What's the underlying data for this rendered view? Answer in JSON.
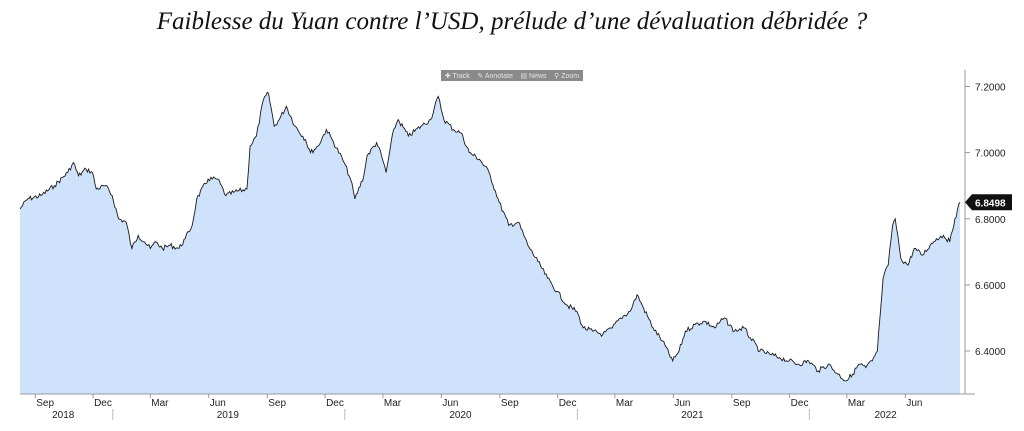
{
  "title": "Faiblesse du Yuan contre l’USD, prélude d’une dévaluation débridée ?",
  "toolbar": {
    "items": [
      {
        "label": "Track",
        "icon": "crosshair-icon"
      },
      {
        "label": "Annotate",
        "icon": "pencil-icon"
      },
      {
        "label": "News",
        "icon": "news-icon"
      },
      {
        "label": "Zoom",
        "icon": "magnifier-icon"
      }
    ]
  },
  "chart_data": {
    "type": "area",
    "title": "Faiblesse du Yuan contre l’USD, prélude d’une dévaluation débridée ?",
    "xlabel": "",
    "ylabel": "",
    "x_range": [
      "2018-08-08",
      "2022-08-26"
    ],
    "ylim": [
      6.27,
      7.25
    ],
    "y_ticks": [
      6.4,
      6.6,
      6.8,
      7.0,
      7.2
    ],
    "y_tick_labels": [
      "6.4000",
      "6.6000",
      "6.8000",
      "7.0000",
      "7.2000"
    ],
    "last_value": 6.8498,
    "last_value_label": "6.8498",
    "fill_color": "#cfe2fb",
    "line_color": "#1a1a1a",
    "grid": false,
    "x_month_ticks": [
      {
        "date": "2018-09-01",
        "label": "Sep"
      },
      {
        "date": "2018-12-01",
        "label": "Dec"
      },
      {
        "date": "2019-03-01",
        "label": "Mar"
      },
      {
        "date": "2019-06-01",
        "label": "Jun"
      },
      {
        "date": "2019-09-01",
        "label": "Sep"
      },
      {
        "date": "2019-12-01",
        "label": "Dec"
      },
      {
        "date": "2020-03-01",
        "label": "Mar"
      },
      {
        "date": "2020-06-01",
        "label": "Jun"
      },
      {
        "date": "2020-09-01",
        "label": "Sep"
      },
      {
        "date": "2020-12-01",
        "label": "Dec"
      },
      {
        "date": "2021-03-01",
        "label": "Mar"
      },
      {
        "date": "2021-06-01",
        "label": "Jun"
      },
      {
        "date": "2021-09-01",
        "label": "Sep"
      },
      {
        "date": "2021-12-01",
        "label": "Dec"
      },
      {
        "date": "2022-03-01",
        "label": "Mar"
      },
      {
        "date": "2022-06-01",
        "label": "Jun"
      }
    ],
    "x_year_labels": [
      {
        "date": "2018-10-15",
        "label": "2018"
      },
      {
        "date": "2019-07-01",
        "label": "2019"
      },
      {
        "date": "2020-07-01",
        "label": "2020"
      },
      {
        "date": "2021-07-01",
        "label": "2021"
      },
      {
        "date": "2022-05-01",
        "label": "2022"
      }
    ],
    "x_year_dividers": [
      "2019-01-01",
      "2020-01-01",
      "2021-01-01",
      "2022-01-01"
    ],
    "series": [
      {
        "values": [
          [
            "2018-08-08",
            6.83
          ],
          [
            "2018-08-20",
            6.86
          ],
          [
            "2018-09-10",
            6.87
          ],
          [
            "2018-10-01",
            6.9
          ],
          [
            "2018-10-22",
            6.94
          ],
          [
            "2018-10-31",
            6.97
          ],
          [
            "2018-11-08",
            6.93
          ],
          [
            "2018-11-20",
            6.95
          ],
          [
            "2018-11-30",
            6.94
          ],
          [
            "2018-12-06",
            6.89
          ],
          [
            "2018-12-20",
            6.9
          ],
          [
            "2018-12-31",
            6.87
          ],
          [
            "2019-01-10",
            6.8
          ],
          [
            "2019-01-22",
            6.79
          ],
          [
            "2019-01-31",
            6.71
          ],
          [
            "2019-02-10",
            6.75
          ],
          [
            "2019-02-20",
            6.73
          ],
          [
            "2019-03-01",
            6.71
          ],
          [
            "2019-03-10",
            6.73
          ],
          [
            "2019-03-20",
            6.71
          ],
          [
            "2019-04-01",
            6.72
          ],
          [
            "2019-04-15",
            6.71
          ],
          [
            "2019-04-25",
            6.74
          ],
          [
            "2019-05-06",
            6.78
          ],
          [
            "2019-05-13",
            6.86
          ],
          [
            "2019-05-31",
            6.92
          ],
          [
            "2019-06-15",
            6.92
          ],
          [
            "2019-06-28",
            6.87
          ],
          [
            "2019-07-10",
            6.88
          ],
          [
            "2019-07-31",
            6.89
          ],
          [
            "2019-08-05",
            7.02
          ],
          [
            "2019-08-15",
            7.05
          ],
          [
            "2019-08-26",
            7.16
          ],
          [
            "2019-09-03",
            7.18
          ],
          [
            "2019-09-12",
            7.08
          ],
          [
            "2019-09-20",
            7.1
          ],
          [
            "2019-10-01",
            7.14
          ],
          [
            "2019-10-15",
            7.08
          ],
          [
            "2019-10-31",
            7.04
          ],
          [
            "2019-11-08",
            7.0
          ],
          [
            "2019-11-20",
            7.02
          ],
          [
            "2019-12-03",
            7.07
          ],
          [
            "2019-12-12",
            7.04
          ],
          [
            "2019-12-31",
            6.97
          ],
          [
            "2020-01-10",
            6.92
          ],
          [
            "2020-01-17",
            6.86
          ],
          [
            "2020-01-31",
            6.93
          ],
          [
            "2020-02-05",
            6.99
          ],
          [
            "2020-02-20",
            7.03
          ],
          [
            "2020-02-28",
            6.99
          ],
          [
            "2020-03-06",
            6.94
          ],
          [
            "2020-03-18",
            7.07
          ],
          [
            "2020-03-25",
            7.1
          ],
          [
            "2020-04-10",
            7.05
          ],
          [
            "2020-04-30",
            7.08
          ],
          [
            "2020-05-15",
            7.1
          ],
          [
            "2020-05-27",
            7.17
          ],
          [
            "2020-06-05",
            7.1
          ],
          [
            "2020-06-20",
            7.07
          ],
          [
            "2020-07-02",
            7.06
          ],
          [
            "2020-07-15",
            7.0
          ],
          [
            "2020-07-31",
            6.98
          ],
          [
            "2020-08-15",
            6.94
          ],
          [
            "2020-08-31",
            6.85
          ],
          [
            "2020-09-15",
            6.78
          ],
          [
            "2020-09-30",
            6.79
          ],
          [
            "2020-10-15",
            6.72
          ],
          [
            "2020-10-31",
            6.67
          ],
          [
            "2020-11-15",
            6.62
          ],
          [
            "2020-11-30",
            6.58
          ],
          [
            "2020-12-15",
            6.54
          ],
          [
            "2020-12-31",
            6.52
          ],
          [
            "2021-01-10",
            6.47
          ],
          [
            "2021-01-25",
            6.46
          ],
          [
            "2021-02-10",
            6.45
          ],
          [
            "2021-02-25",
            6.47
          ],
          [
            "2021-03-10",
            6.5
          ],
          [
            "2021-03-25",
            6.52
          ],
          [
            "2021-04-05",
            6.57
          ],
          [
            "2021-04-15",
            6.53
          ],
          [
            "2021-04-30",
            6.47
          ],
          [
            "2021-05-15",
            6.43
          ],
          [
            "2021-05-31",
            6.37
          ],
          [
            "2021-06-10",
            6.4
          ],
          [
            "2021-06-20",
            6.46
          ],
          [
            "2021-07-05",
            6.48
          ],
          [
            "2021-07-20",
            6.49
          ],
          [
            "2021-08-05",
            6.47
          ],
          [
            "2021-08-20",
            6.5
          ],
          [
            "2021-09-05",
            6.46
          ],
          [
            "2021-09-20",
            6.47
          ],
          [
            "2021-09-30",
            6.44
          ],
          [
            "2021-10-15",
            6.4
          ],
          [
            "2021-10-31",
            6.39
          ],
          [
            "2021-11-15",
            6.38
          ],
          [
            "2021-11-30",
            6.37
          ],
          [
            "2021-12-15",
            6.36
          ],
          [
            "2021-12-31",
            6.37
          ],
          [
            "2022-01-15",
            6.34
          ],
          [
            "2022-01-31",
            6.36
          ],
          [
            "2022-02-15",
            6.33
          ],
          [
            "2022-02-28",
            6.31
          ],
          [
            "2022-03-10",
            6.33
          ],
          [
            "2022-03-20",
            6.36
          ],
          [
            "2022-03-31",
            6.35
          ],
          [
            "2022-04-10",
            6.37
          ],
          [
            "2022-04-18",
            6.4
          ],
          [
            "2022-04-22",
            6.5
          ],
          [
            "2022-04-27",
            6.62
          ],
          [
            "2022-05-05",
            6.66
          ],
          [
            "2022-05-12",
            6.78
          ],
          [
            "2022-05-16",
            6.8
          ],
          [
            "2022-05-25",
            6.68
          ],
          [
            "2022-06-05",
            6.66
          ],
          [
            "2022-06-15",
            6.71
          ],
          [
            "2022-06-28",
            6.69
          ],
          [
            "2022-07-10",
            6.72
          ],
          [
            "2022-07-20",
            6.74
          ],
          [
            "2022-07-31",
            6.75
          ],
          [
            "2022-08-10",
            6.73
          ],
          [
            "2022-08-18",
            6.8
          ],
          [
            "2022-08-26",
            6.85
          ]
        ]
      }
    ]
  }
}
